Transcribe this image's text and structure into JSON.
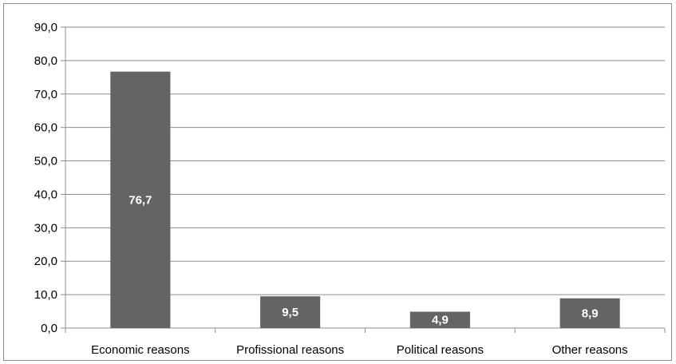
{
  "chart_data": {
    "type": "bar",
    "title": "",
    "xlabel": "",
    "ylabel": "",
    "categories": [
      "Economic reasons",
      "Profissional reasons",
      "Political reasons",
      "Other reasons"
    ],
    "values": [
      76.7,
      9.5,
      4.9,
      8.9
    ],
    "data_labels": [
      "76,7",
      "9,5",
      "4,9",
      "8,9"
    ],
    "ylim": [
      0,
      90
    ],
    "yticks": [
      0,
      10,
      20,
      30,
      40,
      50,
      60,
      70,
      80,
      90
    ],
    "ytick_labels": [
      "0,0",
      "10,0",
      "20,0",
      "30,0",
      "40,0",
      "50,0",
      "60,0",
      "70,0",
      "80,0",
      "90,0"
    ],
    "grid": true,
    "legend": "none",
    "colors": {
      "bar": "#646464",
      "grid": "#8c8c8c",
      "axis": "#8c8c8c",
      "data_label": "#ffffff"
    }
  }
}
